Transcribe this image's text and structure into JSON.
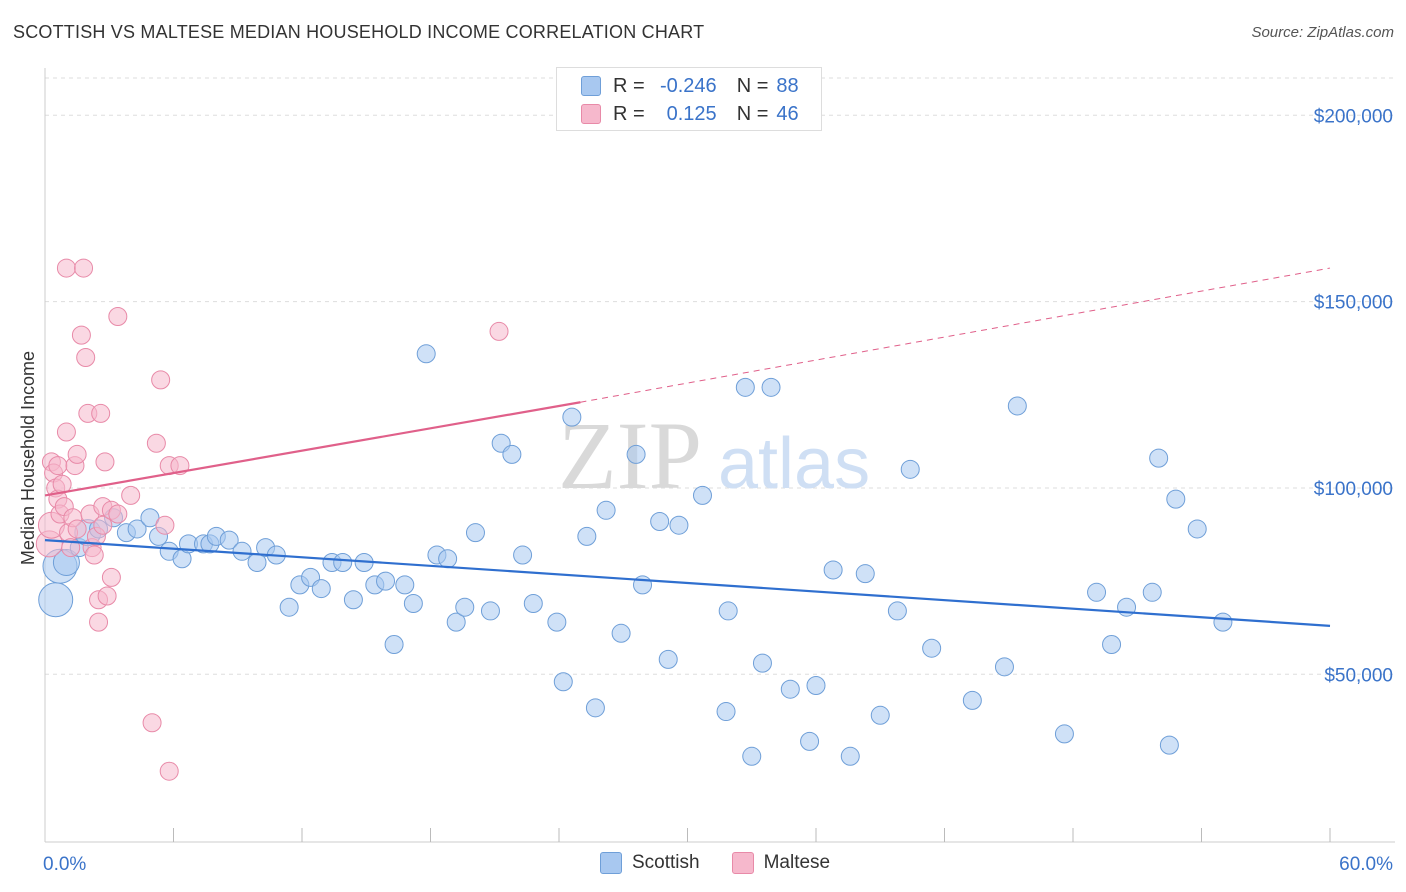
{
  "header": {
    "title": "SCOTTISH VS MALTESE MEDIAN HOUSEHOLD INCOME CORRELATION CHART",
    "source": "Source: ZipAtlas.com"
  },
  "legend_stats": [
    {
      "r_label": "R =",
      "r_value": "-0.246",
      "n_label": "N =",
      "n_value": "88"
    },
    {
      "r_label": "R =",
      "r_value": "0.125",
      "n_label": "N =",
      "n_value": "46"
    }
  ],
  "colors": {
    "scottish_fill": "#a8c8f0",
    "scottish_stroke": "#6f9fd8",
    "scottish_line": "#2f6fcf",
    "maltese_fill": "#f6b8cc",
    "maltese_stroke": "#e88aa8",
    "maltese_line": "#e0608a",
    "axis_label": "#3a73c9",
    "grid": "#dddddd"
  },
  "chart_data": {
    "type": "scatter",
    "title": "SCOTTISH VS MALTESE MEDIAN HOUSEHOLD INCOME CORRELATION CHART",
    "ylabel": "Median Household Income",
    "xlabel": "",
    "x_tick_labels": [
      "0.0%",
      "60.0%"
    ],
    "y_tick_labels": [
      "$50,000",
      "$100,000",
      "$150,000",
      "$200,000"
    ],
    "y_ticks": [
      50000,
      100000,
      150000,
      200000
    ],
    "xlim": [
      0,
      60
    ],
    "ylim": [
      5000,
      210000
    ],
    "grid": true,
    "legend_position": "bottom",
    "watermark": "ZIPatlas",
    "series": [
      {
        "name": "Scottish",
        "r": -0.246,
        "n": 88,
        "trend": {
          "x": [
            0,
            60
          ],
          "y": [
            86000,
            63000
          ]
        },
        "points": [
          [
            0.5,
            70000,
            3
          ],
          [
            0.7,
            79000,
            3
          ],
          [
            1.0,
            80000,
            2
          ],
          [
            1.6,
            84000,
            1
          ],
          [
            2.0,
            88000,
            2
          ],
          [
            2.5,
            89000,
            1
          ],
          [
            3.2,
            92000,
            1
          ],
          [
            3.8,
            88000,
            1
          ],
          [
            4.3,
            89000,
            1
          ],
          [
            4.9,
            92000,
            1
          ],
          [
            5.3,
            87000,
            1
          ],
          [
            5.8,
            83000,
            1
          ],
          [
            6.4,
            81000,
            1
          ],
          [
            6.7,
            85000,
            1
          ],
          [
            7.4,
            85000,
            1
          ],
          [
            7.7,
            85000,
            1
          ],
          [
            8.0,
            87000,
            1
          ],
          [
            8.6,
            86000,
            1
          ],
          [
            9.2,
            83000,
            1
          ],
          [
            9.9,
            80000,
            1
          ],
          [
            10.3,
            84000,
            1
          ],
          [
            10.8,
            82000,
            1
          ],
          [
            11.4,
            68000,
            1
          ],
          [
            11.9,
            74000,
            1
          ],
          [
            12.4,
            76000,
            1
          ],
          [
            12.9,
            73000,
            1
          ],
          [
            13.4,
            80000,
            1
          ],
          [
            13.9,
            80000,
            1
          ],
          [
            14.4,
            70000,
            1
          ],
          [
            14.9,
            80000,
            1
          ],
          [
            15.4,
            74000,
            1
          ],
          [
            15.9,
            75000,
            1
          ],
          [
            16.3,
            58000,
            1
          ],
          [
            16.8,
            74000,
            1
          ],
          [
            17.2,
            69000,
            1
          ],
          [
            17.8,
            136000,
            1
          ],
          [
            18.3,
            82000,
            1
          ],
          [
            18.8,
            81000,
            1
          ],
          [
            19.2,
            64000,
            1
          ],
          [
            19.6,
            68000,
            1
          ],
          [
            20.1,
            88000,
            1
          ],
          [
            20.8,
            67000,
            1
          ],
          [
            21.3,
            112000,
            1
          ],
          [
            21.8,
            109000,
            1
          ],
          [
            22.3,
            82000,
            1
          ],
          [
            22.8,
            69000,
            1
          ],
          [
            23.9,
            64000,
            1
          ],
          [
            24.2,
            48000,
            1
          ],
          [
            24.6,
            119000,
            1
          ],
          [
            25.3,
            87000,
            1
          ],
          [
            25.7,
            41000,
            1
          ],
          [
            26.2,
            94000,
            1
          ],
          [
            26.9,
            61000,
            1
          ],
          [
            27.6,
            109000,
            1
          ],
          [
            27.9,
            74000,
            1
          ],
          [
            28.7,
            91000,
            1
          ],
          [
            29.1,
            54000,
            1
          ],
          [
            29.6,
            90000,
            1
          ],
          [
            30.7,
            98000,
            1
          ],
          [
            31.8,
            40000,
            1
          ],
          [
            31.9,
            67000,
            1
          ],
          [
            32.7,
            127000,
            1
          ],
          [
            33.0,
            28000,
            1
          ],
          [
            33.5,
            53000,
            1
          ],
          [
            33.9,
            127000,
            1
          ],
          [
            34.8,
            46000,
            1
          ],
          [
            35.7,
            32000,
            1
          ],
          [
            36.0,
            47000,
            1
          ],
          [
            36.8,
            78000,
            1
          ],
          [
            37.6,
            28000,
            1
          ],
          [
            38.3,
            77000,
            1
          ],
          [
            39.0,
            39000,
            1
          ],
          [
            39.8,
            67000,
            1
          ],
          [
            40.4,
            105000,
            1
          ],
          [
            41.4,
            57000,
            1
          ],
          [
            43.3,
            43000,
            1
          ],
          [
            44.8,
            52000,
            1
          ],
          [
            45.4,
            122000,
            1
          ],
          [
            47.6,
            34000,
            1
          ],
          [
            49.1,
            72000,
            1
          ],
          [
            49.8,
            58000,
            1
          ],
          [
            50.5,
            68000,
            1
          ],
          [
            51.7,
            72000,
            1
          ],
          [
            52.0,
            108000,
            1
          ],
          [
            52.5,
            31000,
            1
          ],
          [
            52.8,
            97000,
            1
          ],
          [
            53.8,
            89000,
            1
          ],
          [
            55.0,
            64000,
            1
          ]
        ]
      },
      {
        "name": "Maltese",
        "r": 0.125,
        "n": 46,
        "trend_solid": {
          "x": [
            0,
            25
          ],
          "y": [
            98000,
            123000
          ]
        },
        "trend_dashed": {
          "x": [
            25,
            60
          ],
          "y": [
            123000,
            159000
          ]
        },
        "points": [
          [
            0.2,
            85000,
            2
          ],
          [
            0.3,
            90000,
            2
          ],
          [
            0.3,
            107000,
            1
          ],
          [
            0.4,
            104000,
            1
          ],
          [
            0.5,
            100000,
            1
          ],
          [
            0.6,
            106000,
            1
          ],
          [
            0.6,
            97000,
            1
          ],
          [
            0.7,
            93000,
            1
          ],
          [
            0.8,
            101000,
            1
          ],
          [
            0.9,
            95000,
            1
          ],
          [
            1.0,
            115000,
            1
          ],
          [
            1.0,
            159000,
            1
          ],
          [
            1.1,
            88000,
            1
          ],
          [
            1.2,
            84000,
            1
          ],
          [
            1.3,
            92000,
            1
          ],
          [
            1.4,
            106000,
            1
          ],
          [
            1.5,
            109000,
            1
          ],
          [
            1.5,
            89000,
            1
          ],
          [
            1.7,
            141000,
            1
          ],
          [
            1.8,
            159000,
            1
          ],
          [
            1.9,
            135000,
            1
          ],
          [
            2.0,
            120000,
            1
          ],
          [
            2.1,
            93000,
            1
          ],
          [
            2.2,
            84000,
            1
          ],
          [
            2.3,
            82000,
            1
          ],
          [
            2.4,
            87000,
            1
          ],
          [
            2.5,
            70000,
            1
          ],
          [
            2.5,
            64000,
            1
          ],
          [
            2.6,
            120000,
            1
          ],
          [
            2.7,
            95000,
            1
          ],
          [
            2.7,
            90000,
            1
          ],
          [
            2.8,
            107000,
            1
          ],
          [
            2.9,
            71000,
            1
          ],
          [
            3.1,
            76000,
            1
          ],
          [
            3.1,
            94000,
            1
          ],
          [
            3.4,
            93000,
            1
          ],
          [
            3.4,
            146000,
            1
          ],
          [
            4.0,
            98000,
            1
          ],
          [
            5.0,
            37000,
            1
          ],
          [
            5.2,
            112000,
            1
          ],
          [
            5.4,
            129000,
            1
          ],
          [
            5.6,
            90000,
            1
          ],
          [
            5.8,
            106000,
            1
          ],
          [
            5.8,
            24000,
            1
          ],
          [
            6.3,
            106000,
            1
          ],
          [
            21.2,
            142000,
            1
          ]
        ]
      }
    ]
  }
}
